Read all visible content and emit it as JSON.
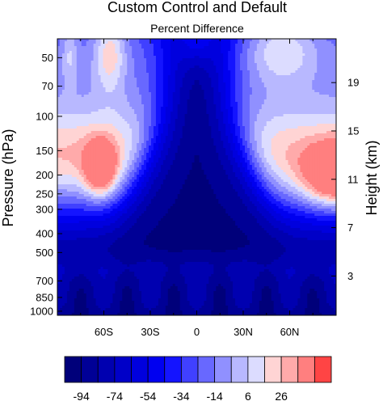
{
  "chart_data": {
    "type": "heatmap",
    "title": "Custom Control and Default",
    "subtitle": "Percent Difference",
    "ylabel": "Pressure (hPa)",
    "y2label": "Height (km)",
    "xlabel": "",
    "x_ticks": [
      {
        "value": -60,
        "label": "60S"
      },
      {
        "value": -30,
        "label": "30S"
      },
      {
        "value": 0,
        "label": "0"
      },
      {
        "value": 30,
        "label": "30N"
      },
      {
        "value": 60,
        "label": "60N"
      }
    ],
    "xlim": [
      -90,
      90
    ],
    "y_ticks": [
      50,
      70,
      100,
      150,
      200,
      250,
      300,
      400,
      500,
      700,
      850,
      1000
    ],
    "ylim": [
      1050,
      40
    ],
    "y_scale": "log",
    "y2_ticks": [
      {
        "value": 3,
        "label": "3"
      },
      {
        "value": 7,
        "label": "7"
      },
      {
        "value": 11,
        "label": "11"
      },
      {
        "value": 15,
        "label": "15"
      },
      {
        "value": 19,
        "label": "19"
      }
    ],
    "colorbar": {
      "levels": [
        -94,
        -84,
        -74,
        -64,
        -54,
        -44,
        -34,
        -24,
        -14,
        -4,
        6,
        16,
        26,
        36
      ],
      "tick_labels": [
        "-94",
        "-74",
        "-54",
        "-34",
        "-14",
        "6",
        "26"
      ],
      "colors": [
        "#00007a",
        "#000096",
        "#0000b0",
        "#0000c8",
        "#0000de",
        "#0000f0",
        "#1414ff",
        "#4040ff",
        "#6868ff",
        "#9090ff",
        "#b8b8ff",
        "#dcdcff",
        "#ffd4d4",
        "#ffaaaa",
        "#ff7f7f",
        "#ff4444"
      ]
    },
    "grid": false,
    "legend": "bottom"
  }
}
